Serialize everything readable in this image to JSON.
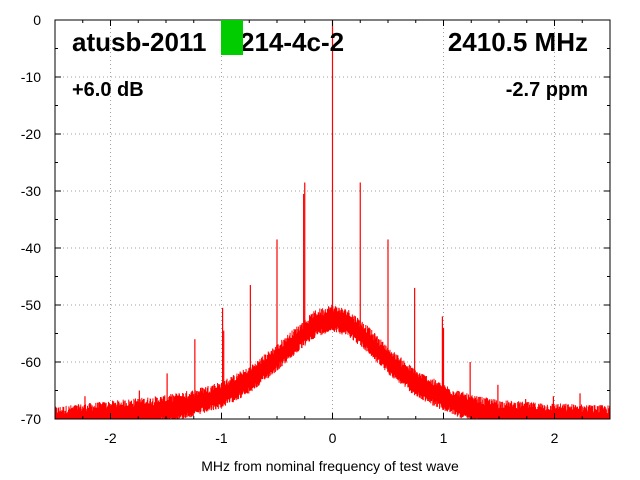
{
  "chart_data": {
    "type": "line",
    "title": "",
    "xlabel": "MHz from nominal frequency of test wave",
    "ylabel": "",
    "xlim": [
      -2.5,
      2.5
    ],
    "ylim": [
      -70,
      0
    ],
    "x_ticks": [
      -2,
      -1,
      0,
      1,
      2
    ],
    "x_tick_labels": [
      "-2",
      "-1",
      "0",
      "1",
      "2"
    ],
    "y_ticks": [
      0,
      -10,
      -20,
      -30,
      -40,
      -50,
      -60,
      -70
    ],
    "y_tick_labels": [
      "0",
      "-10",
      "-20",
      "-30",
      "-40",
      "-50",
      "-60",
      "-70"
    ],
    "grid": true,
    "series_color": "#ff0000",
    "noise_floor": {
      "x": [
        -2.5,
        -2.25,
        -2.0,
        -1.75,
        -1.5,
        -1.25,
        -1.0,
        -0.75,
        -0.5,
        -0.3,
        -0.15,
        0.0,
        0.15,
        0.3,
        0.5,
        0.75,
        1.0,
        1.25,
        1.5,
        1.75,
        2.0,
        2.25,
        2.5
      ],
      "y": [
        -70,
        -69.5,
        -69,
        -68.5,
        -68,
        -67,
        -65.5,
        -63,
        -59,
        -55.5,
        -53,
        -52,
        -53,
        -55.5,
        -59.5,
        -63.5,
        -66,
        -68,
        -68.8,
        -69.2,
        -69.4,
        -69.6,
        -69.8
      ]
    },
    "peaks": {
      "x": [
        -2.23,
        -1.99,
        -1.74,
        -1.49,
        -1.24,
        -0.99,
        -0.98,
        -0.74,
        -0.5,
        -0.26,
        -0.25,
        0.0,
        0.25,
        0.5,
        0.74,
        0.99,
        1.0,
        1.24,
        1.49,
        1.74,
        1.99,
        2.23
      ],
      "y": [
        -66,
        -68.5,
        -65,
        -62,
        -56,
        -50.5,
        -54.5,
        -46.5,
        -38.5,
        -30.5,
        -28.5,
        0,
        -28.5,
        -38.5,
        -47,
        -52,
        -54,
        -60,
        -64,
        -66.5,
        -66,
        -65.5
      ]
    },
    "annotations": {
      "device_name": "atusb-2011",
      "device_suffix": "214-4c-2",
      "frequency": "2410.5 MHz",
      "gain": "+6.0 dB",
      "offset": "-2.7 ppm"
    },
    "marker_color": "#00cc00"
  }
}
